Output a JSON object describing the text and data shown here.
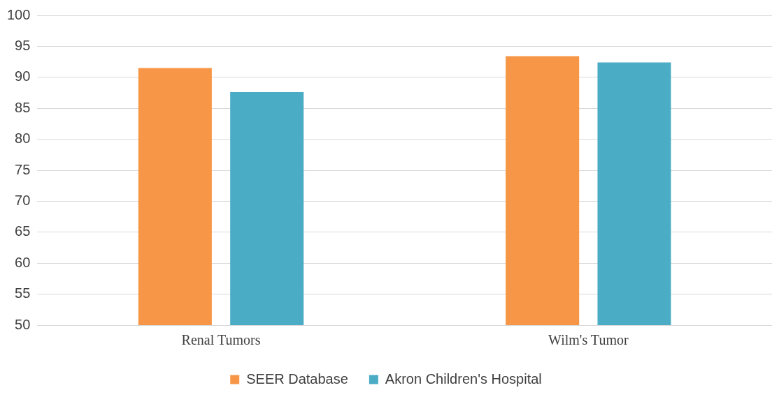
{
  "chart_data": {
    "type": "bar",
    "categories": [
      "Renal Tumors",
      "Wilm's Tumor"
    ],
    "series": [
      {
        "name": "SEER Database",
        "color": "#f79646",
        "values": [
          91.5,
          93.4
        ]
      },
      {
        "name": "Akron Children's Hospital",
        "color": "#4bacc6",
        "values": [
          87.6,
          92.4
        ]
      }
    ],
    "ylim": [
      50,
      100
    ],
    "yticks": [
      50,
      55,
      60,
      65,
      70,
      75,
      80,
      85,
      90,
      95,
      100
    ],
    "grid": "y",
    "legend": "bottom"
  }
}
